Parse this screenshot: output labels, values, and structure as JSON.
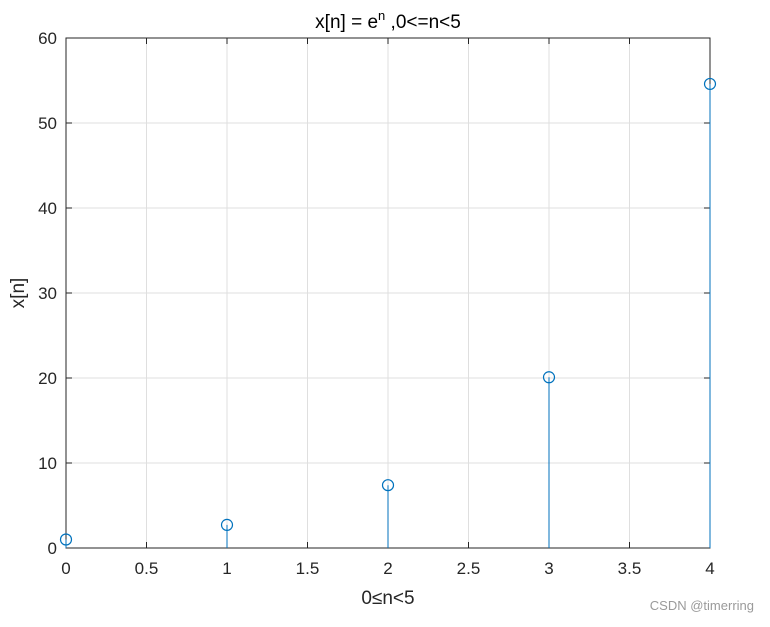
{
  "chart_data": {
    "type": "stem",
    "title": "x[n] = e",
    "title_superscript": "n",
    "title_suffix": " ,0<=n<5",
    "xlabel": "0≤n<5",
    "ylabel": "x[n]",
    "x": [
      0,
      1,
      2,
      3,
      4
    ],
    "y": [
      1.0,
      2.7183,
      7.3891,
      20.0855,
      54.5982
    ],
    "xlim": [
      0,
      4
    ],
    "ylim": [
      0,
      60
    ],
    "xticks": [
      0,
      0.5,
      1,
      1.5,
      2,
      2.5,
      3,
      3.5,
      4
    ],
    "xtick_labels": [
      "0",
      "0.5",
      "1",
      "1.5",
      "2",
      "2.5",
      "3",
      "3.5",
      "4"
    ],
    "yticks": [
      0,
      10,
      20,
      30,
      40,
      50,
      60
    ],
    "ytick_labels": [
      "0",
      "10",
      "20",
      "30",
      "40",
      "50",
      "60"
    ],
    "grid": true,
    "series_color": "#0072BD",
    "marker": "circle-open"
  },
  "watermark": "CSDN @timerring"
}
